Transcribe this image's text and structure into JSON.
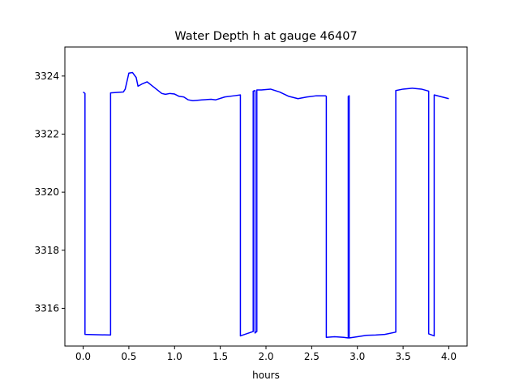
{
  "chart_data": {
    "type": "line",
    "title": "Water Depth h at gauge 46407",
    "xlabel": "hours",
    "ylabel": "",
    "xlim": [
      -0.2,
      4.2
    ],
    "ylim": [
      3314.7,
      3325.0
    ],
    "xticks": [
      0.0,
      0.5,
      1.0,
      1.5,
      2.0,
      2.5,
      3.0,
      3.5,
      4.0
    ],
    "xtick_labels": [
      "0.0",
      "0.5",
      "1.0",
      "1.5",
      "2.0",
      "2.5",
      "3.0",
      "3.5",
      "4.0"
    ],
    "yticks": [
      3316,
      3318,
      3320,
      3322,
      3324
    ],
    "ytick_labels": [
      "3316",
      "3318",
      "3320",
      "3322",
      "3324"
    ],
    "grid": false,
    "series": [
      {
        "color": "#0000ff",
        "x": [
          0.0,
          0.02,
          0.02,
          0.3,
          0.3,
          0.44,
          0.46,
          0.5,
          0.54,
          0.58,
          0.6,
          0.64,
          0.7,
          0.74,
          0.8,
          0.86,
          0.9,
          0.95,
          1.0,
          1.05,
          1.1,
          1.15,
          1.2,
          1.3,
          1.4,
          1.45,
          1.55,
          1.65,
          1.72,
          1.72,
          1.86,
          1.86,
          1.88,
          1.88,
          1.9,
          1.9,
          1.95,
          2.05,
          2.15,
          2.25,
          2.35,
          2.45,
          2.55,
          2.65,
          2.66,
          2.66,
          2.75,
          2.85,
          2.9,
          2.9,
          2.91,
          2.91,
          3.0,
          3.1,
          3.2,
          3.3,
          3.42,
          3.42,
          3.5,
          3.6,
          3.7,
          3.78,
          3.78,
          3.84,
          3.84,
          3.9,
          4.0
        ],
        "y": [
          3323.45,
          3323.4,
          3315.1,
          3315.08,
          3323.42,
          3323.45,
          3323.55,
          3324.1,
          3324.12,
          3323.95,
          3323.65,
          3323.72,
          3323.8,
          3323.7,
          3323.55,
          3323.4,
          3323.37,
          3323.4,
          3323.38,
          3323.3,
          3323.28,
          3323.18,
          3323.15,
          3323.18,
          3323.2,
          3323.18,
          3323.28,
          3323.32,
          3323.35,
          3315.05,
          3315.2,
          3323.48,
          3323.5,
          3315.15,
          3315.2,
          3323.52,
          3323.52,
          3323.55,
          3323.45,
          3323.3,
          3323.22,
          3323.28,
          3323.32,
          3323.32,
          3323.3,
          3315.0,
          3315.02,
          3315.0,
          3314.98,
          3323.3,
          3323.32,
          3314.98,
          3315.02,
          3315.07,
          3315.08,
          3315.1,
          3315.18,
          3323.5,
          3323.55,
          3323.58,
          3323.55,
          3323.48,
          3315.12,
          3315.05,
          3323.35,
          3323.3,
          3323.22
        ]
      }
    ]
  }
}
